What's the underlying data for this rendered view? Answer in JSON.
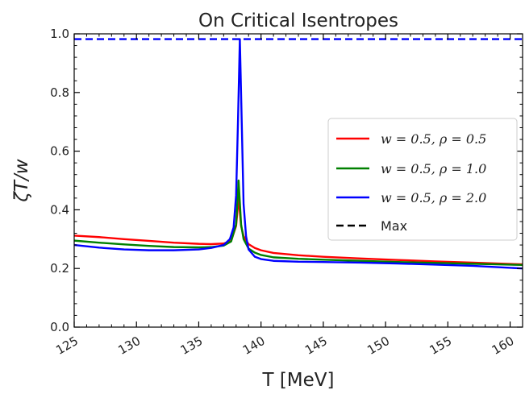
{
  "chart_data": {
    "type": "line",
    "title": "On Critical Isentropes",
    "xlabel": "T [MeV]",
    "ylabel": "ζT/w",
    "xlim": [
      125,
      161
    ],
    "ylim": [
      0.0,
      1.0
    ],
    "xticks": [
      125,
      130,
      135,
      140,
      145,
      150,
      155,
      160
    ],
    "xtick_labels": [
      "125",
      "130",
      "135",
      "140",
      "145",
      "150",
      "155",
      "160"
    ],
    "yticks": [
      0.0,
      0.2,
      0.4,
      0.6,
      0.8,
      1.0
    ],
    "ytick_labels": [
      "0.0",
      "0.2",
      "0.4",
      "0.6",
      "0.8",
      "1.0"
    ],
    "grid": false,
    "legend_position": "center-right",
    "series": [
      {
        "name": "w = 0.5,  ρ = 0.5",
        "color": "#ff0000",
        "style": "solid",
        "x": [
          125,
          127,
          129,
          131,
          133,
          135,
          136,
          137,
          137.6,
          138.0,
          138.2,
          138.4,
          138.6,
          139.0,
          139.5,
          140,
          141,
          143,
          145,
          148,
          151,
          154,
          157,
          161
        ],
        "y": [
          0.312,
          0.307,
          0.3,
          0.294,
          0.288,
          0.284,
          0.283,
          0.285,
          0.294,
          0.345,
          0.44,
          0.345,
          0.31,
          0.283,
          0.27,
          0.262,
          0.253,
          0.245,
          0.24,
          0.234,
          0.229,
          0.224,
          0.22,
          0.214
        ]
      },
      {
        "name": "w = 0.5,  ρ = 1.0",
        "color": "#008000",
        "style": "solid",
        "x": [
          125,
          127,
          129,
          131,
          133,
          135,
          136,
          137,
          137.6,
          138.0,
          138.2,
          138.4,
          138.6,
          139.0,
          139.5,
          140,
          141,
          143,
          145,
          148,
          151,
          154,
          157,
          161
        ],
        "y": [
          0.295,
          0.288,
          0.282,
          0.277,
          0.273,
          0.272,
          0.273,
          0.278,
          0.292,
          0.35,
          0.5,
          0.35,
          0.3,
          0.268,
          0.254,
          0.246,
          0.238,
          0.233,
          0.23,
          0.226,
          0.222,
          0.219,
          0.216,
          0.212
        ]
      },
      {
        "name": "w = 0.5,  ρ = 2.0",
        "color": "#0000ff",
        "style": "solid",
        "x": [
          125,
          127,
          129,
          131,
          133,
          135,
          136,
          137,
          137.5,
          137.8,
          138.0,
          138.15,
          138.3,
          138.45,
          138.6,
          138.8,
          139.0,
          139.5,
          140,
          141,
          143,
          145,
          148,
          151,
          154,
          157,
          161
        ],
        "y": [
          0.28,
          0.271,
          0.265,
          0.262,
          0.262,
          0.265,
          0.27,
          0.28,
          0.3,
          0.34,
          0.45,
          0.7,
          0.982,
          0.7,
          0.42,
          0.31,
          0.265,
          0.24,
          0.232,
          0.226,
          0.223,
          0.222,
          0.22,
          0.217,
          0.213,
          0.209,
          0.2
        ]
      },
      {
        "name": "Max",
        "color": "#0000ff",
        "legend_color": "#000000",
        "style": "dashed",
        "x": [
          125,
          161
        ],
        "y": [
          0.982,
          0.982
        ]
      }
    ],
    "legend": [
      {
        "label": "w = 0.5,  ρ = 0.5",
        "color": "#ff0000",
        "style": "solid"
      },
      {
        "label": "w = 0.5,  ρ = 1.0",
        "color": "#008000",
        "style": "solid"
      },
      {
        "label": "w = 0.5,  ρ = 2.0",
        "color": "#0000ff",
        "style": "solid"
      },
      {
        "label": "Max",
        "color": "#000000",
        "style": "dashed"
      }
    ]
  }
}
